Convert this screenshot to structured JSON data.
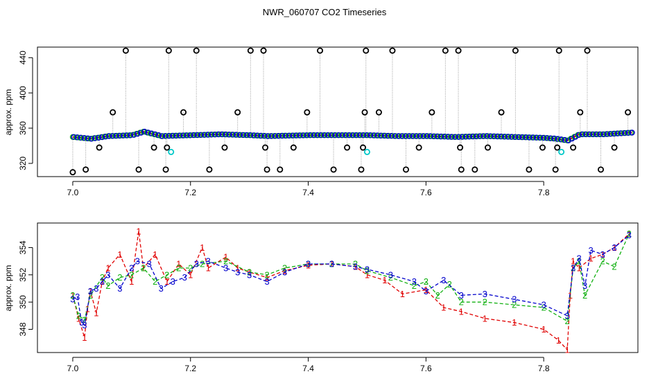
{
  "title": "NWR_060707  CO2 Timeseries",
  "colors": {
    "s1": "#e00000",
    "s2": "#10b010",
    "s3": "#0000cc",
    "outlier": "#000000",
    "flag": "#00c8c8",
    "guide": "#9a9a9a"
  },
  "chart_data": [
    {
      "type": "scatter",
      "ylabel": "approx. ppm",
      "xlim": [
        6.94,
        7.96
      ],
      "ylim": [
        305,
        452
      ],
      "xticks": [
        7.0,
        7.2,
        7.4,
        7.6,
        7.8
      ],
      "xtick_labels": [
        "7.0",
        "7.2",
        "7.4",
        "7.6",
        "7.8"
      ],
      "yticks": [
        320,
        360,
        400,
        440
      ],
      "ytick_labels": [
        "320",
        "360",
        "400",
        "440"
      ],
      "grid": false,
      "baseline": {
        "x": [
          7.0,
          7.03,
          7.06,
          7.1,
          7.12,
          7.15,
          7.2,
          7.25,
          7.3,
          7.33,
          7.4,
          7.45,
          7.49,
          7.5,
          7.55,
          7.6,
          7.65,
          7.7,
          7.75,
          7.8,
          7.82,
          7.84,
          7.86,
          7.9,
          7.95
        ],
        "y": [
          350,
          348,
          351,
          352,
          356,
          351,
          352,
          353,
          352,
          351,
          352,
          352,
          352,
          352,
          351,
          351,
          350,
          351,
          350,
          349,
          348,
          346,
          353,
          353,
          355
        ]
      },
      "outliers": [
        {
          "x": 7.0,
          "y": 310
        },
        {
          "x": 7.022,
          "y": 313
        },
        {
          "x": 7.045,
          "y": 338
        },
        {
          "x": 7.068,
          "y": 378
        },
        {
          "x": 7.09,
          "y": 448
        },
        {
          "x": 7.112,
          "y": 313
        },
        {
          "x": 7.138,
          "y": 338
        },
        {
          "x": 7.158,
          "y": 313
        },
        {
          "x": 7.16,
          "y": 338
        },
        {
          "x": 7.163,
          "y": 448
        },
        {
          "x": 7.188,
          "y": 378
        },
        {
          "x": 7.21,
          "y": 448
        },
        {
          "x": 7.232,
          "y": 313
        },
        {
          "x": 7.258,
          "y": 338
        },
        {
          "x": 7.28,
          "y": 378
        },
        {
          "x": 7.302,
          "y": 448
        },
        {
          "x": 7.324,
          "y": 448
        },
        {
          "x": 7.327,
          "y": 338
        },
        {
          "x": 7.33,
          "y": 313
        },
        {
          "x": 7.352,
          "y": 313
        },
        {
          "x": 7.375,
          "y": 338
        },
        {
          "x": 7.398,
          "y": 378
        },
        {
          "x": 7.42,
          "y": 448
        },
        {
          "x": 7.443,
          "y": 313
        },
        {
          "x": 7.466,
          "y": 338
        },
        {
          "x": 7.49,
          "y": 313
        },
        {
          "x": 7.493,
          "y": 338
        },
        {
          "x": 7.496,
          "y": 378
        },
        {
          "x": 7.498,
          "y": 448
        },
        {
          "x": 7.52,
          "y": 378
        },
        {
          "x": 7.543,
          "y": 448
        },
        {
          "x": 7.566,
          "y": 313
        },
        {
          "x": 7.588,
          "y": 338
        },
        {
          "x": 7.61,
          "y": 378
        },
        {
          "x": 7.633,
          "y": 448
        },
        {
          "x": 7.655,
          "y": 448
        },
        {
          "x": 7.658,
          "y": 338
        },
        {
          "x": 7.66,
          "y": 313
        },
        {
          "x": 7.683,
          "y": 313
        },
        {
          "x": 7.705,
          "y": 338
        },
        {
          "x": 7.728,
          "y": 378
        },
        {
          "x": 7.752,
          "y": 448
        },
        {
          "x": 7.775,
          "y": 313
        },
        {
          "x": 7.798,
          "y": 338
        },
        {
          "x": 7.82,
          "y": 313
        },
        {
          "x": 7.823,
          "y": 338
        },
        {
          "x": 7.826,
          "y": 448
        },
        {
          "x": 7.85,
          "y": 338
        },
        {
          "x": 7.862,
          "y": 378
        },
        {
          "x": 7.874,
          "y": 448
        },
        {
          "x": 7.897,
          "y": 313
        },
        {
          "x": 7.92,
          "y": 338
        },
        {
          "x": 7.943,
          "y": 378
        }
      ],
      "flags": [
        {
          "x": 7.167,
          "y": 333
        },
        {
          "x": 7.5,
          "y": 333
        },
        {
          "x": 7.83,
          "y": 333
        }
      ]
    },
    {
      "type": "line",
      "ylabel": "approx. ppm",
      "xlim": [
        6.94,
        7.96
      ],
      "ylim": [
        346.3,
        355.8
      ],
      "xticks": [
        7.0,
        7.2,
        7.4,
        7.6,
        7.8
      ],
      "xtick_labels": [
        "7.0",
        "7.2",
        "7.4",
        "7.6",
        "7.8"
      ],
      "yticks": [
        348,
        350,
        352,
        354
      ],
      "ytick_labels": [
        "348",
        "350",
        "352",
        "354"
      ],
      "grid": false,
      "series": [
        {
          "marker": "1",
          "color": "#e00000",
          "x": [
            7.0,
            7.01,
            7.02,
            7.025,
            7.03,
            7.04,
            7.05,
            7.06,
            7.08,
            7.1,
            7.112,
            7.12,
            7.14,
            7.16,
            7.18,
            7.2,
            7.22,
            7.23,
            7.26,
            7.28,
            7.3,
            7.33,
            7.36,
            7.4,
            7.44,
            7.48,
            7.5,
            7.53,
            7.56,
            7.6,
            7.63,
            7.66,
            7.7,
            7.75,
            7.8,
            7.825,
            7.84,
            7.845,
            7.85,
            7.86,
            7.88,
            7.9,
            7.92,
            7.945
          ],
          "y": [
            350.5,
            348.8,
            347.4,
            349.5,
            350.8,
            349.2,
            351.5,
            352.5,
            353.5,
            351.5,
            355.2,
            352.5,
            353.5,
            351.5,
            352.8,
            352.0,
            354.0,
            352.5,
            353.3,
            352.5,
            352.2,
            351.8,
            352.3,
            352.7,
            352.8,
            352.6,
            352.0,
            351.6,
            350.6,
            350.9,
            349.6,
            349.3,
            348.8,
            348.5,
            348.0,
            347.2,
            346.5,
            350.5,
            353.0,
            352.5,
            353.2,
            353.5,
            354.0,
            355.0
          ]
        },
        {
          "marker": "2",
          "color": "#10b010",
          "x": [
            7.0,
            7.01,
            7.02,
            7.03,
            7.05,
            7.06,
            7.08,
            7.1,
            7.12,
            7.14,
            7.16,
            7.18,
            7.2,
            7.22,
            7.26,
            7.3,
            7.33,
            7.36,
            7.4,
            7.44,
            7.48,
            7.5,
            7.54,
            7.58,
            7.6,
            7.62,
            7.64,
            7.66,
            7.7,
            7.75,
            7.8,
            7.84,
            7.85,
            7.86,
            7.87,
            7.9,
            7.92,
            7.945
          ],
          "y": [
            350.5,
            349.0,
            348.7,
            350.5,
            351.8,
            351.2,
            351.8,
            352.0,
            352.5,
            351.5,
            352.0,
            352.5,
            352.5,
            352.8,
            353.0,
            352.2,
            352.0,
            352.5,
            352.8,
            352.8,
            352.8,
            352.3,
            351.8,
            351.2,
            351.5,
            350.5,
            351.3,
            350.0,
            350.0,
            349.8,
            349.6,
            348.6,
            352.5,
            353.0,
            350.5,
            353.0,
            352.6,
            355.0
          ]
        },
        {
          "marker": "3",
          "color": "#0000cc",
          "x": [
            7.0,
            7.008,
            7.015,
            7.02,
            7.03,
            7.04,
            7.05,
            7.06,
            7.08,
            7.1,
            7.11,
            7.13,
            7.15,
            7.17,
            7.19,
            7.21,
            7.23,
            7.26,
            7.28,
            7.3,
            7.33,
            7.36,
            7.4,
            7.44,
            7.48,
            7.5,
            7.54,
            7.58,
            7.6,
            7.63,
            7.66,
            7.7,
            7.75,
            7.8,
            7.84,
            7.85,
            7.86,
            7.87,
            7.88,
            7.9,
            7.92,
            7.945
          ],
          "y": [
            350.2,
            350.4,
            348.5,
            348.3,
            350.8,
            351.0,
            351.5,
            352.0,
            351.0,
            352.5,
            353.0,
            352.8,
            351.0,
            351.5,
            351.8,
            352.8,
            353.0,
            352.5,
            352.2,
            352.0,
            351.5,
            352.2,
            352.8,
            352.8,
            352.6,
            352.4,
            352.0,
            351.5,
            350.8,
            351.6,
            350.5,
            350.6,
            350.2,
            349.8,
            349.0,
            352.5,
            353.2,
            351.2,
            353.8,
            353.5,
            354.0,
            354.9
          ]
        }
      ]
    }
  ]
}
